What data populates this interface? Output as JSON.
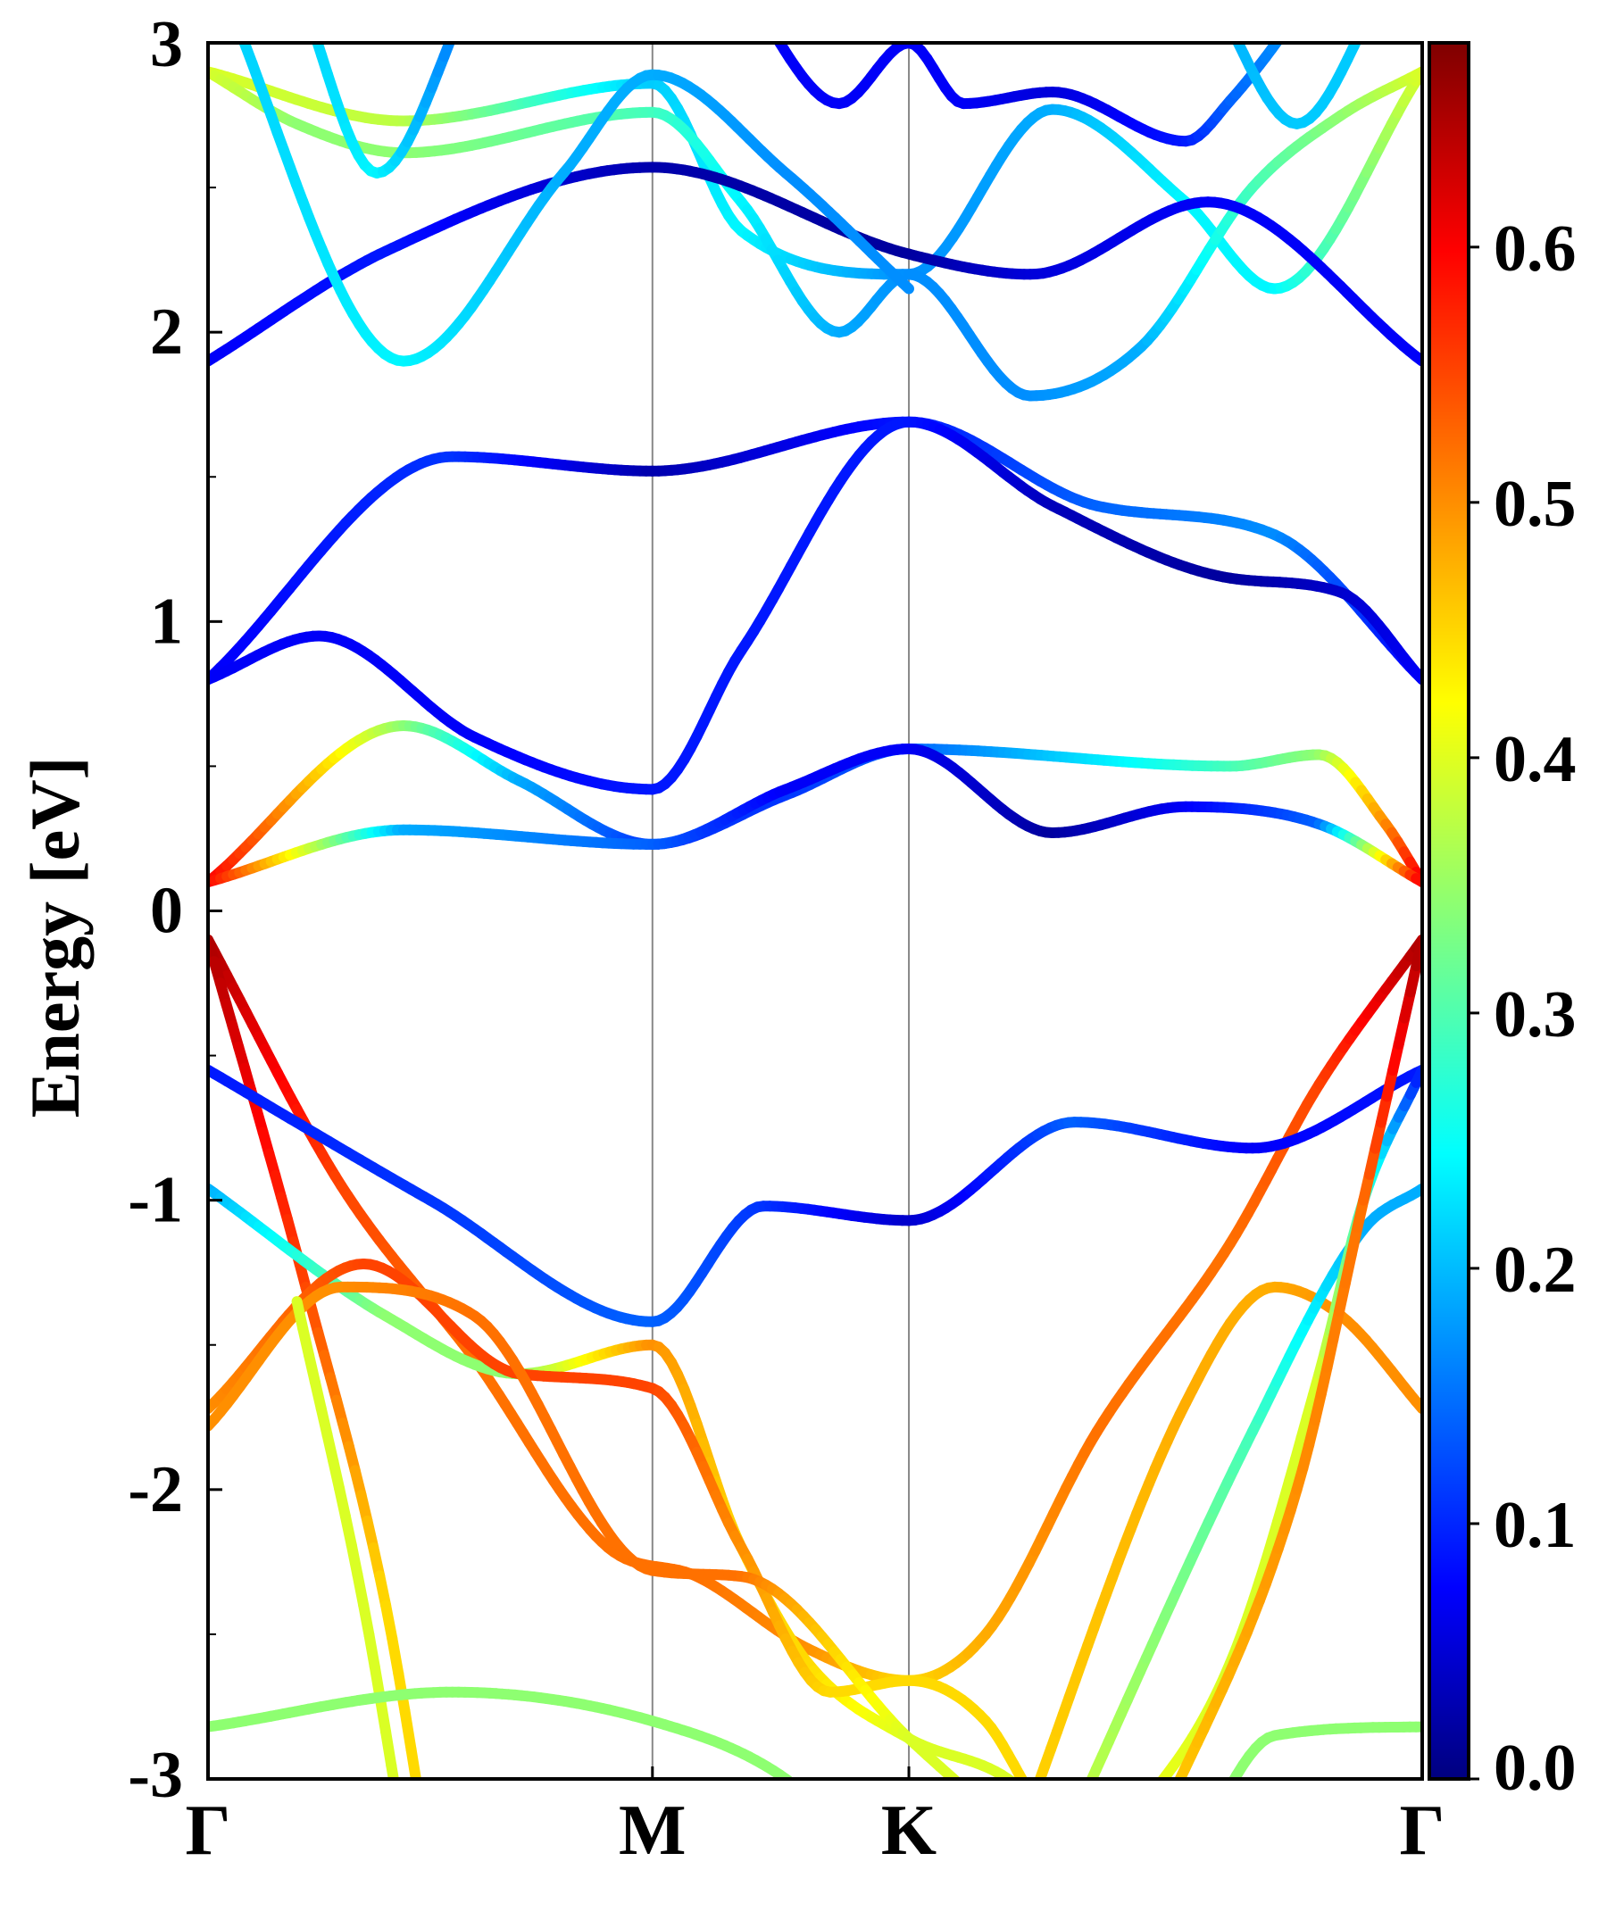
{
  "chart_data": {
    "type": "line",
    "title": "",
    "ylabel": "Energy [eV]",
    "xlabel": "",
    "ylim": [
      -3,
      3
    ],
    "yticks": [
      "3",
      "2",
      "1",
      "0",
      "-1",
      "-2",
      "-3"
    ],
    "ytick_values": [
      3,
      2,
      1,
      0,
      -1,
      -2,
      -3
    ],
    "kpath": [
      {
        "label": "Γ",
        "x": 0.0
      },
      {
        "label": "M",
        "x": 1.0
      },
      {
        "label": "K",
        "x": 1.577
      },
      {
        "label": "Γ",
        "x": 2.732
      }
    ],
    "xlim": [
      0,
      2.732
    ],
    "colorbar": {
      "min": 0.0,
      "max": 0.68,
      "ticks": [
        "0.0",
        "0.1",
        "0.2",
        "0.3",
        "0.4",
        "0.5",
        "0.6"
      ],
      "tick_values": [
        0.0,
        0.1,
        0.2,
        0.3,
        0.4,
        0.5,
        0.6
      ],
      "colormap": "jet"
    },
    "colors": {
      "axis": "#000000",
      "vline": "#888888"
    },
    "series": [
      {
        "name": "band-c6",
        "points": [
          [
            0,
            2.9,
            0.4
          ],
          [
            0.44,
            2.73,
            0.38
          ],
          [
            1.0,
            2.86,
            0.22
          ],
          [
            1.2,
            2.35,
            0.25
          ],
          [
            1.577,
            2.2,
            0.18
          ],
          [
            1.9,
            2.77,
            0.2
          ],
          [
            2.2,
            2.45,
            0.25
          ],
          [
            2.4,
            2.15,
            0.25
          ],
          [
            2.732,
            2.9,
            0.4
          ]
        ]
      },
      {
        "name": "band-c5",
        "points": [
          [
            0,
            2.9,
            0.4
          ],
          [
            0.2,
            2.72,
            0.35
          ],
          [
            0.44,
            2.62,
            0.35
          ],
          [
            1.0,
            2.76,
            0.3
          ],
          [
            1.2,
            2.45,
            0.25
          ],
          [
            1.42,
            2.0,
            0.2
          ],
          [
            1.577,
            2.2,
            0.18
          ],
          [
            1.85,
            1.78,
            0.18
          ],
          [
            2.1,
            1.95,
            0.2
          ],
          [
            2.35,
            2.5,
            0.3
          ],
          [
            2.55,
            2.75,
            0.35
          ],
          [
            2.732,
            2.9,
            0.4
          ]
        ]
      },
      {
        "name": "band-c4",
        "points": [
          [
            0,
            1.9,
            0.08
          ],
          [
            0.4,
            2.28,
            0.1
          ],
          [
            1.0,
            2.57,
            0.03
          ],
          [
            1.577,
            2.27,
            0.02
          ],
          [
            1.85,
            2.2,
            0.06
          ],
          [
            2.25,
            2.45,
            0.08
          ],
          [
            2.732,
            1.9,
            0.08
          ]
        ]
      },
      {
        "name": "band-c3",
        "points": [
          [
            0,
            3.3,
            0.22
          ],
          [
            0.44,
            1.9,
            0.25
          ],
          [
            0.8,
            2.55,
            0.2
          ],
          [
            1.0,
            2.89,
            0.2
          ],
          [
            1.3,
            2.55,
            0.18
          ],
          [
            1.577,
            2.15,
            0.18
          ]
        ]
      },
      {
        "name": "band-c7",
        "points": [
          [
            0.2,
            3.2,
            0.22
          ],
          [
            0.38,
            2.55,
            0.25
          ],
          [
            0.6,
            3.2,
            0.15
          ]
        ]
      },
      {
        "name": "band-c8",
        "points": [
          [
            1.2,
            3.2,
            0.08
          ],
          [
            1.42,
            2.79,
            0.08
          ],
          [
            1.577,
            3.0,
            0.08
          ],
          [
            1.7,
            2.79,
            0.08
          ],
          [
            1.9,
            2.83,
            0.06
          ],
          [
            2.2,
            2.66,
            0.1
          ],
          [
            2.3,
            2.8,
            0.15
          ],
          [
            2.5,
            3.2,
            0.2
          ]
        ]
      },
      {
        "name": "band-c9",
        "points": [
          [
            2.25,
            3.2,
            0.2
          ],
          [
            2.45,
            2.72,
            0.22
          ],
          [
            2.65,
            3.2,
            0.22
          ]
        ]
      },
      {
        "name": "band-c2",
        "points": [
          [
            0,
            0.8,
            0.08
          ],
          [
            0.55,
            1.57,
            0.12
          ],
          [
            1.0,
            1.52,
            0.03
          ],
          [
            1.577,
            1.69,
            0.1
          ],
          [
            2.0,
            1.4,
            0.15
          ],
          [
            2.4,
            1.3,
            0.18
          ],
          [
            2.732,
            0.8,
            0.08
          ]
        ]
      },
      {
        "name": "band-c1",
        "points": [
          [
            0,
            0.8,
            0.08
          ],
          [
            0.25,
            0.95,
            0.08
          ],
          [
            0.6,
            0.6,
            0.08
          ],
          [
            1.0,
            0.42,
            0.1
          ],
          [
            1.2,
            0.9,
            0.1
          ],
          [
            1.577,
            1.69,
            0.1
          ],
          [
            1.9,
            1.4,
            0.04
          ],
          [
            2.3,
            1.15,
            0.02
          ],
          [
            2.55,
            1.1,
            0.05
          ],
          [
            2.732,
            0.8,
            0.08
          ]
        ]
      },
      {
        "name": "band-c0a",
        "points": [
          [
            0,
            0.1,
            0.6
          ],
          [
            0.44,
            0.64,
            0.35
          ],
          [
            0.7,
            0.45,
            0.2
          ],
          [
            1.0,
            0.23,
            0.12
          ],
          [
            1.3,
            0.4,
            0.12
          ],
          [
            1.577,
            0.56,
            0.15
          ],
          [
            2.3,
            0.5,
            0.3
          ],
          [
            2.5,
            0.54,
            0.35
          ],
          [
            2.65,
            0.3,
            0.5
          ],
          [
            2.732,
            0.1,
            0.6
          ]
        ]
      },
      {
        "name": "band-c0b",
        "points": [
          [
            0,
            0.1,
            0.6
          ],
          [
            0.44,
            0.28,
            0.2
          ],
          [
            1.0,
            0.23,
            0.15
          ],
          [
            1.3,
            0.42,
            0.08
          ],
          [
            1.577,
            0.56,
            0.08
          ],
          [
            1.9,
            0.27,
            0.02
          ],
          [
            2.2,
            0.36,
            0.08
          ],
          [
            2.5,
            0.3,
            0.15
          ],
          [
            2.732,
            0.1,
            0.6
          ]
        ]
      },
      {
        "name": "band-v1",
        "points": [
          [
            0,
            -0.1,
            0.65
          ],
          [
            0.3,
            -0.95,
            0.55
          ],
          [
            0.6,
            -1.55,
            0.52
          ],
          [
            0.9,
            -2.2,
            0.52
          ],
          [
            1.1,
            -2.3,
            0.52
          ],
          [
            1.35,
            -2.55,
            0.5
          ],
          [
            1.577,
            -2.66,
            0.45
          ],
          [
            1.75,
            -2.5,
            0.48
          ],
          [
            2.0,
            -1.8,
            0.52
          ],
          [
            2.3,
            -1.15,
            0.52
          ],
          [
            2.5,
            -0.6,
            0.55
          ],
          [
            2.732,
            -0.1,
            0.65
          ]
        ]
      },
      {
        "name": "band-v2",
        "points": [
          [
            0,
            -0.1,
            0.65
          ],
          [
            0.22,
            -1.3,
            0.55
          ],
          [
            0.4,
            -2.4,
            0.45
          ],
          [
            0.5,
            -3.3,
            0.45
          ]
        ]
      },
      {
        "name": "band-v3",
        "points": [
          [
            0,
            -0.55,
            0.1
          ],
          [
            0.5,
            -1.0,
            0.12
          ],
          [
            1.0,
            -1.42,
            0.15
          ],
          [
            1.25,
            -1.02,
            0.12
          ],
          [
            1.577,
            -1.07,
            0.05
          ],
          [
            1.95,
            -0.73,
            0.15
          ],
          [
            2.35,
            -0.82,
            0.08
          ],
          [
            2.732,
            -0.55,
            0.1
          ]
        ]
      },
      {
        "name": "band-v4",
        "points": [
          [
            0,
            -0.96,
            0.2
          ],
          [
            0.4,
            -1.4,
            0.35
          ],
          [
            0.7,
            -1.6,
            0.35
          ],
          [
            1.0,
            -1.5,
            0.5
          ],
          [
            1.2,
            -2.2,
            0.45
          ],
          [
            1.35,
            -2.6,
            0.45
          ],
          [
            1.577,
            -2.86,
            0.4
          ],
          [
            1.8,
            -3.0,
            0.4
          ],
          [
            2.0,
            -3.3,
            0.4
          ]
        ]
      },
      {
        "name": "band-v5",
        "points": [
          [
            0,
            -1.72,
            0.5
          ],
          [
            0.35,
            -1.22,
            0.55
          ],
          [
            0.7,
            -1.6,
            0.55
          ],
          [
            1.0,
            -1.65,
            0.55
          ],
          [
            1.2,
            -2.2,
            0.5
          ],
          [
            1.4,
            -2.7,
            0.45
          ],
          [
            1.577,
            -2.66,
            0.45
          ],
          [
            1.75,
            -2.8,
            0.45
          ],
          [
            1.85,
            -3.05,
            0.45
          ]
        ]
      },
      {
        "name": "band-v6",
        "points": [
          [
            0,
            -1.78,
            0.5
          ],
          [
            0.3,
            -1.3,
            0.5
          ],
          [
            0.6,
            -1.4,
            0.52
          ],
          [
            1.0,
            -2.28,
            0.52
          ],
          [
            1.2,
            -2.3,
            0.52
          ],
          [
            1.577,
            -2.86,
            0.4
          ],
          [
            1.9,
            -3.3,
            0.4
          ]
        ]
      },
      {
        "name": "band-v7",
        "points": [
          [
            0.2,
            -1.35,
            0.4
          ],
          [
            0.35,
            -2.4,
            0.4
          ],
          [
            0.45,
            -3.3,
            0.4
          ]
        ]
      },
      {
        "name": "band-v8",
        "points": [
          [
            0,
            -2.82,
            0.35
          ],
          [
            0.55,
            -2.7,
            0.35
          ],
          [
            1.0,
            -2.8,
            0.35
          ],
          [
            1.3,
            -3.0,
            0.35
          ],
          [
            1.5,
            -3.3,
            0.35
          ]
        ]
      },
      {
        "name": "band-v9",
        "points": [
          [
            1.8,
            -3.3,
            0.45
          ],
          [
            2.2,
            -1.7,
            0.48
          ],
          [
            2.4,
            -1.3,
            0.48
          ],
          [
            2.55,
            -1.4,
            0.5
          ],
          [
            2.732,
            -1.72,
            0.5
          ]
        ]
      },
      {
        "name": "band-v10",
        "points": [
          [
            1.9,
            -3.3,
            0.4
          ],
          [
            2.35,
            -1.8,
            0.3
          ],
          [
            2.6,
            -1.1,
            0.2
          ],
          [
            2.732,
            -0.96,
            0.2
          ]
        ]
      },
      {
        "name": "band-v11",
        "points": [
          [
            2.0,
            -3.3,
            0.42
          ],
          [
            2.3,
            -2.6,
            0.4
          ],
          [
            2.5,
            -1.6,
            0.4
          ],
          [
            2.6,
            -1.0,
            0.3
          ],
          [
            2.732,
            -0.55,
            0.1
          ]
        ]
      },
      {
        "name": "band-v12",
        "points": [
          [
            2.2,
            -3.3,
            0.35
          ],
          [
            2.4,
            -2.85,
            0.35
          ],
          [
            2.732,
            -2.82,
            0.35
          ]
        ]
      },
      {
        "name": "band-v13",
        "points": [
          [
            2.1,
            -3.3,
            0.45
          ],
          [
            2.45,
            -2.0,
            0.5
          ],
          [
            2.6,
            -1.0,
            0.52
          ],
          [
            2.732,
            -0.1,
            0.65
          ]
        ]
      }
    ]
  }
}
